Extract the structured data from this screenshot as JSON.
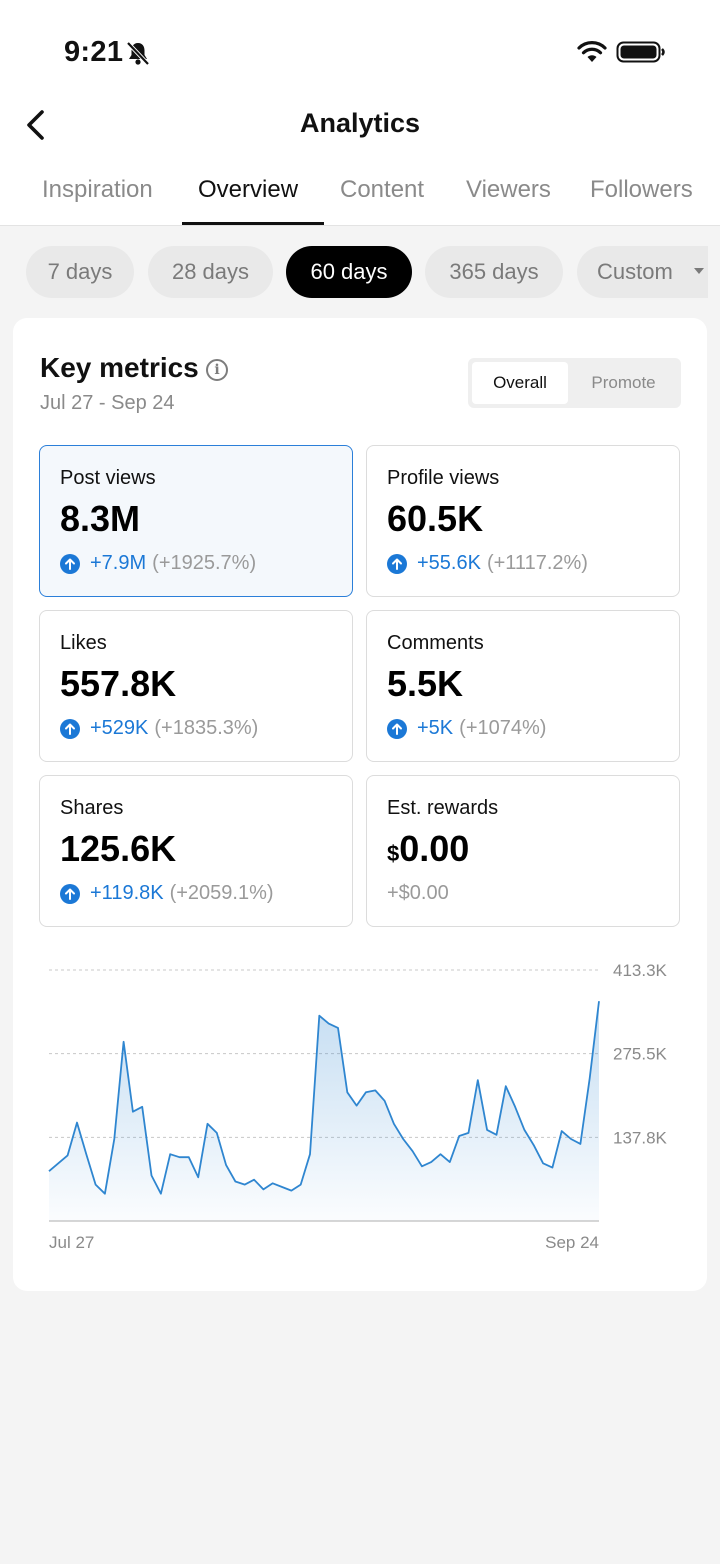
{
  "status_bar": {
    "time": "9:21"
  },
  "header": {
    "title": "Analytics"
  },
  "tabs": [
    {
      "label": "Inspiration",
      "active": false
    },
    {
      "label": "Overview",
      "active": true
    },
    {
      "label": "Content",
      "active": false
    },
    {
      "label": "Viewers",
      "active": false
    },
    {
      "label": "Followers",
      "active": false
    }
  ],
  "periods": [
    {
      "label": "7 days",
      "active": false
    },
    {
      "label": "28 days",
      "active": false
    },
    {
      "label": "60 days",
      "active": true
    },
    {
      "label": "365 days",
      "active": false
    },
    {
      "label": "Custom",
      "active": false
    }
  ],
  "key_metrics": {
    "title": "Key metrics",
    "date_range": "Jul 27 - Sep 24",
    "toggle": {
      "overall": "Overall",
      "promote": "Promote",
      "selected": "Overall"
    }
  },
  "metrics": [
    {
      "label": "Post views",
      "value": "8.3M",
      "delta": "+7.9M",
      "pct": "(+1925.7%)"
    },
    {
      "label": "Profile views",
      "value": "60.5K",
      "delta": "+55.6K",
      "pct": "(+1117.2%)"
    },
    {
      "label": "Likes",
      "value": "557.8K",
      "delta": "+529K",
      "pct": "(+1835.3%)"
    },
    {
      "label": "Comments",
      "value": "5.5K",
      "delta": "+5K",
      "pct": "(+1074%)"
    },
    {
      "label": "Shares",
      "value": "125.6K",
      "delta": "+119.8K",
      "pct": "(+2059.1%)"
    },
    {
      "label": "Est. rewards",
      "currency": "$",
      "value": "0.00",
      "change": "+$0.00"
    }
  ],
  "colors": {
    "accent": "#1b78d6",
    "selected_border": "#2b7fd9",
    "line": "#2f86d0"
  },
  "chart_data": {
    "type": "area",
    "title": "",
    "xlabel": "",
    "ylabel": "",
    "x_tick_labels": [
      "Jul 27",
      "Sep 24"
    ],
    "y_tick_labels": [
      "413.3K",
      "275.5K",
      "137.8K"
    ],
    "y_ticks": [
      413300,
      275500,
      137800
    ],
    "ylim": [
      0,
      413300
    ],
    "grid": true,
    "series": [
      {
        "name": "",
        "values": [
          82000,
          95000,
          108000,
          162000,
          110000,
          60000,
          45000,
          135000,
          295000,
          180000,
          188000,
          75000,
          45000,
          110000,
          105000,
          105000,
          72000,
          160000,
          145000,
          92000,
          65000,
          60000,
          68000,
          52000,
          62000,
          56000,
          50000,
          60000,
          110000,
          338000,
          325000,
          318000,
          212000,
          190000,
          212000,
          215000,
          198000,
          160000,
          135000,
          115000,
          90000,
          97000,
          110000,
          97000,
          140000,
          145000,
          232000,
          150000,
          142000,
          222000,
          188000,
          150000,
          125000,
          95000,
          88000,
          148000,
          135000,
          127000,
          235000,
          362000
        ]
      }
    ]
  }
}
